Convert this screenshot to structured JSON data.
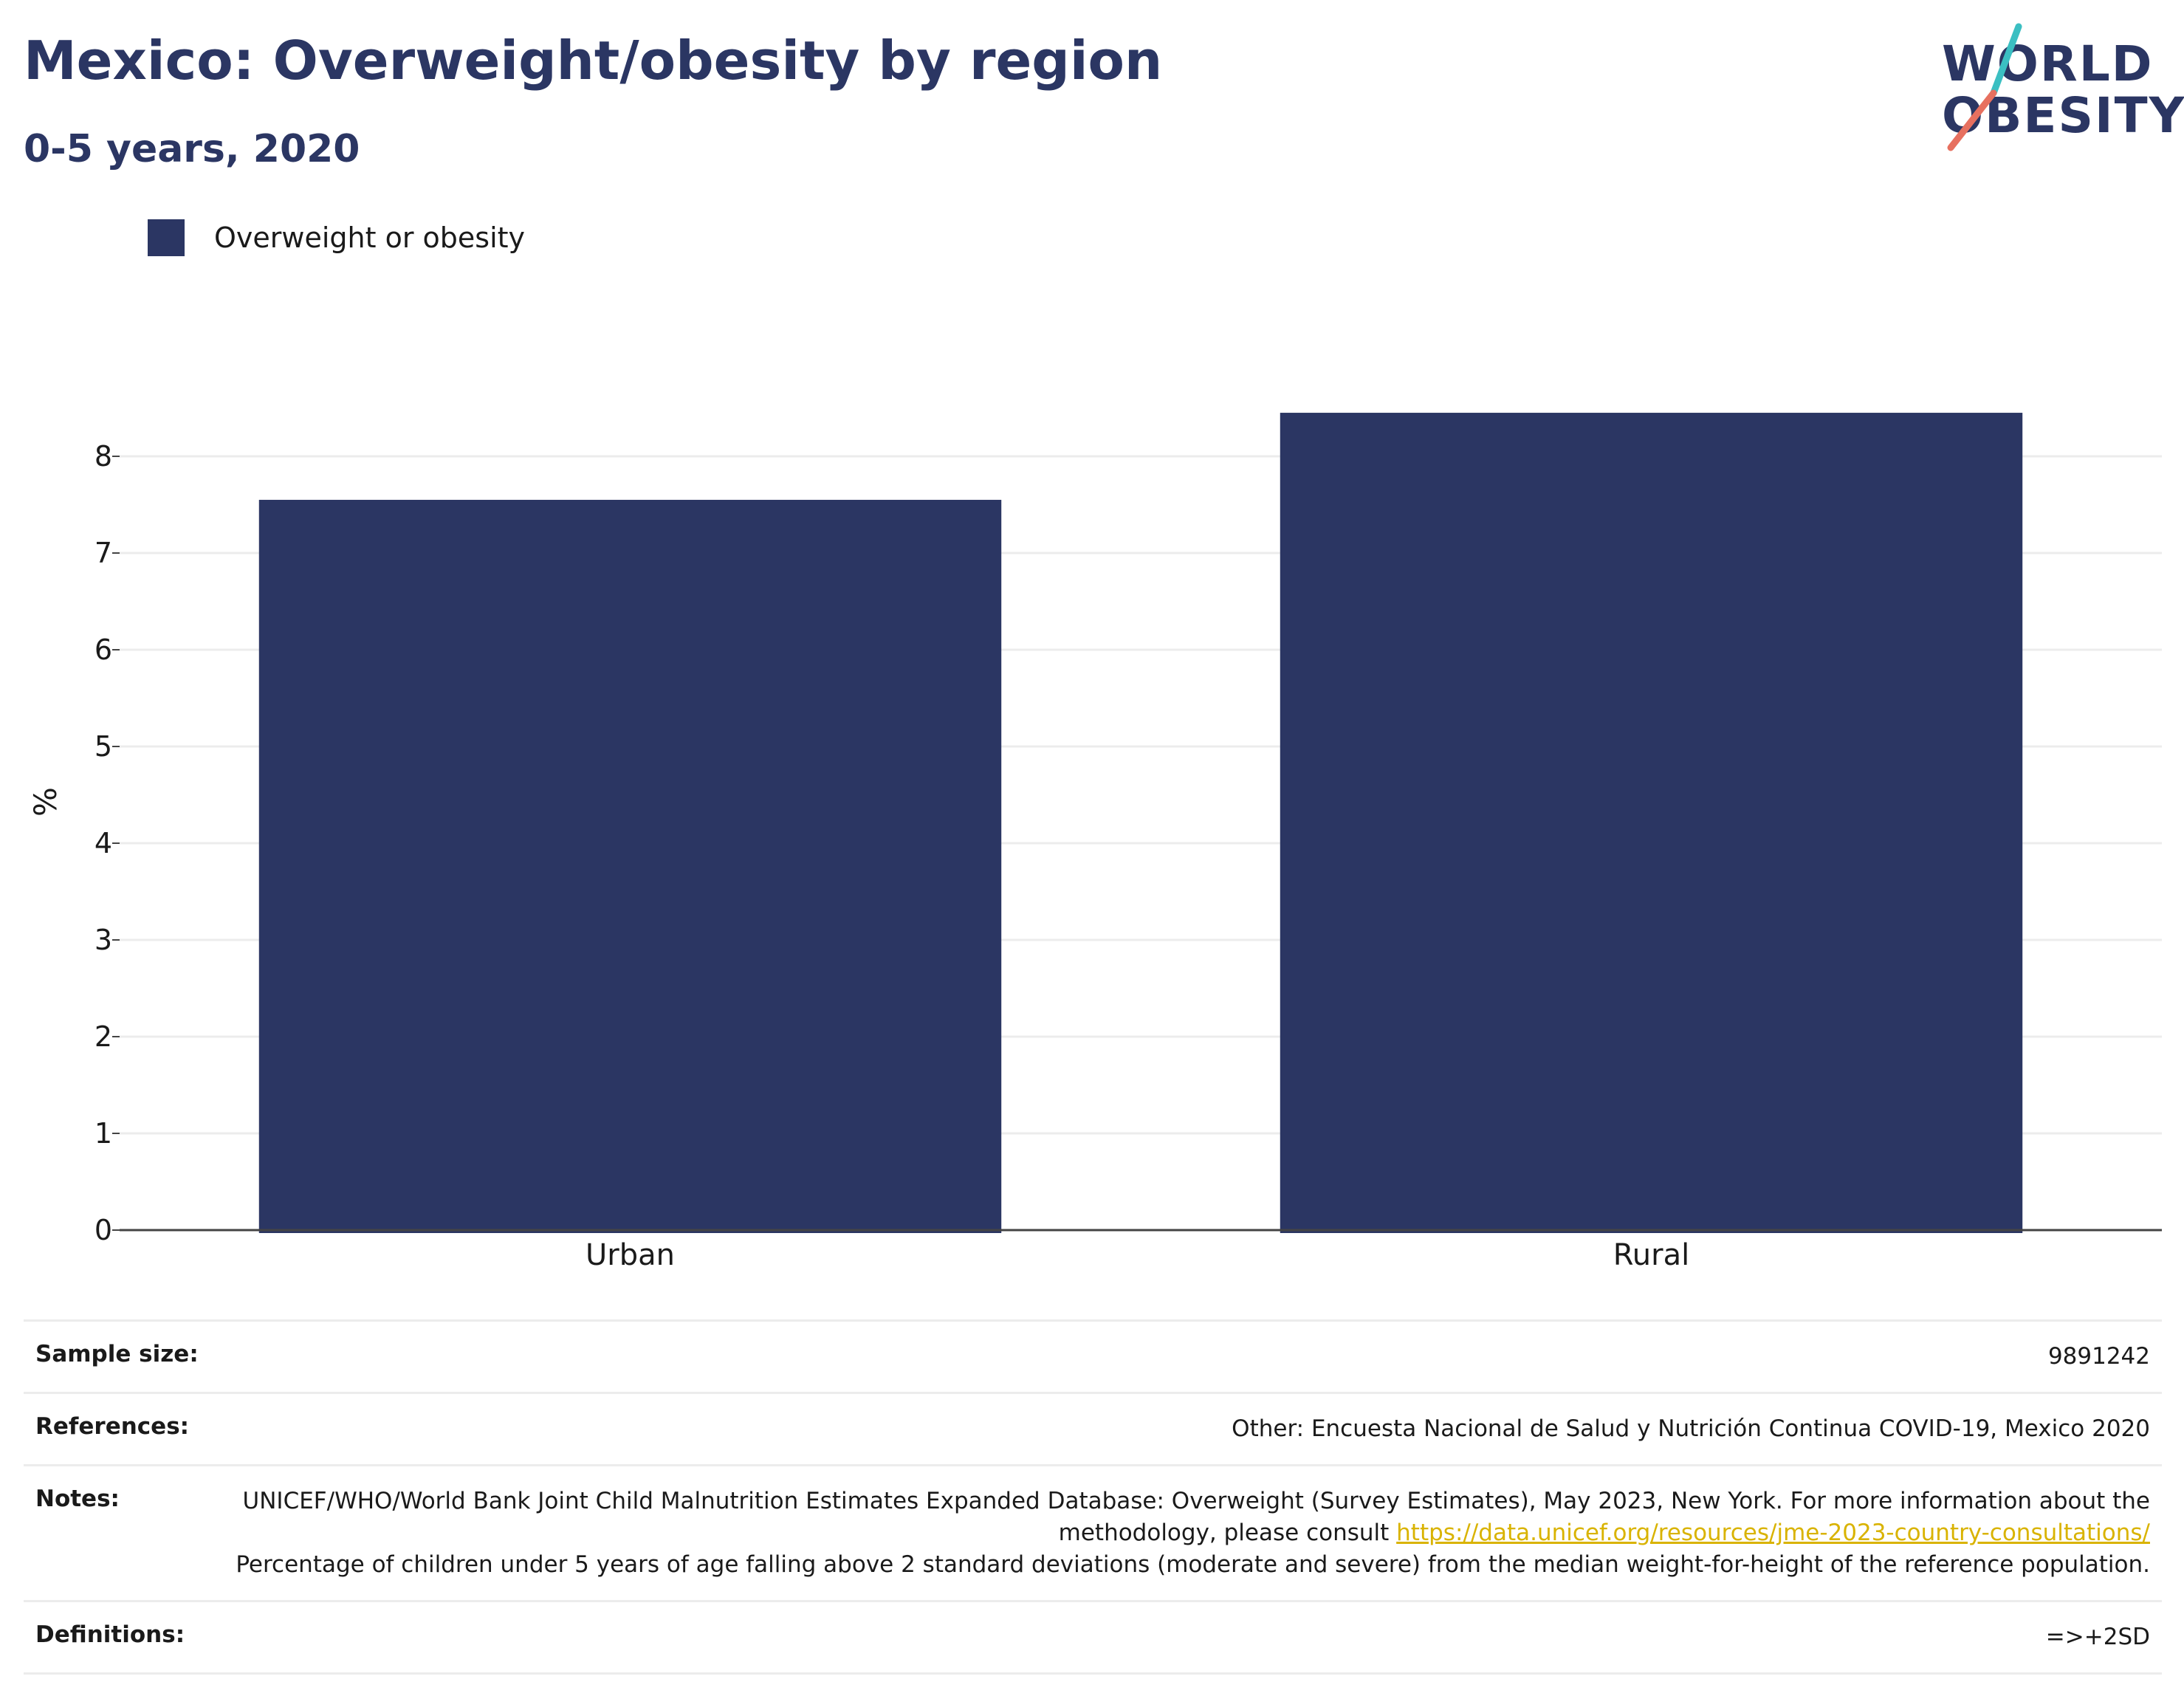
{
  "header": {
    "title": "Mexico: Overweight/obesity by region",
    "subtitle": "0-5 years, 2020"
  },
  "logo": {
    "line1": "WORLD",
    "line2": "OBESITY",
    "accent_teal": "#3bbfc2",
    "accent_coral": "#e7705f"
  },
  "colors": {
    "bar": "#2b3663",
    "title": "#2b3663",
    "link": "#d9b300"
  },
  "chart_data": {
    "type": "bar",
    "categories": [
      "Urban",
      "Rural"
    ],
    "series": [
      {
        "name": "Overweight or obesity",
        "values": [
          7.55,
          8.45
        ]
      }
    ],
    "ylabel": "%",
    "ylim": [
      0,
      9
    ],
    "yticks": [
      "0",
      "1",
      "2",
      "3",
      "4",
      "5",
      "6",
      "7",
      "8"
    ],
    "grid": true,
    "legend": "top-left"
  },
  "info": {
    "sample_size": {
      "label": "Sample size:",
      "value": "9891242"
    },
    "references": {
      "label": "References:",
      "value": "Other: Encuesta Nacional de Salud y Nutrición Continua COVID-19, Mexico 2020"
    },
    "notes": {
      "label": "Notes:",
      "text_before": "UNICEF/WHO/World Bank Joint Child Malnutrition Estimates Expanded Database: Overweight (Survey Estimates), May 2023, New York. For more information about the methodology, please consult ",
      "link": "https://data.unicef.org/resources/jme-2023-country-consultations/",
      "text_after": "Percentage of children under 5 years of age falling above 2 standard deviations (moderate and severe) from the median weight-for-height of the reference population."
    },
    "definitions": {
      "label": "Definitions:",
      "value": "=>+2SD"
    }
  }
}
